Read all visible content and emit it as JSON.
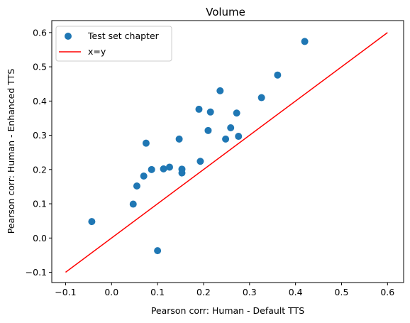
{
  "chart_data": {
    "type": "scatter",
    "title": "Volume",
    "xlabel": "Pearson corr: Human - Default TTS",
    "ylabel": "Pearson corr: Human - Enhanced TTS",
    "xlim": [
      -0.13,
      0.635
    ],
    "ylim": [
      -0.13,
      0.635
    ],
    "xticks": [
      "-0.1",
      "0.0",
      "0.1",
      "0.2",
      "0.3",
      "0.4",
      "0.5",
      "0.6"
    ],
    "yticks": [
      "-0.1",
      "0.0",
      "0.1",
      "0.2",
      "0.3",
      "0.4",
      "0.5",
      "0.6"
    ],
    "grid": false,
    "legend_position": "top-left",
    "series": [
      {
        "name": "Test set chapter",
        "kind": "scatter",
        "color": "#1f77b4",
        "points": [
          [
            -0.043,
            0.048
          ],
          [
            0.047,
            0.099
          ],
          [
            0.055,
            0.152
          ],
          [
            0.07,
            0.181
          ],
          [
            0.075,
            0.277
          ],
          [
            0.087,
            0.2
          ],
          [
            0.1,
            -0.037
          ],
          [
            0.113,
            0.202
          ],
          [
            0.126,
            0.207
          ],
          [
            0.147,
            0.289
          ],
          [
            0.153,
            0.201
          ],
          [
            0.153,
            0.19
          ],
          [
            0.19,
            0.376
          ],
          [
            0.193,
            0.224
          ],
          [
            0.21,
            0.314
          ],
          [
            0.215,
            0.368
          ],
          [
            0.236,
            0.43
          ],
          [
            0.248,
            0.289
          ],
          [
            0.259,
            0.322
          ],
          [
            0.272,
            0.365
          ],
          [
            0.276,
            0.297
          ],
          [
            0.326,
            0.41
          ],
          [
            0.361,
            0.476
          ],
          [
            0.42,
            0.574
          ]
        ]
      },
      {
        "name": "x=y",
        "kind": "line",
        "color": "#ff0000",
        "points": [
          [
            -0.1,
            -0.1
          ],
          [
            0.6,
            0.6
          ]
        ]
      }
    ]
  }
}
